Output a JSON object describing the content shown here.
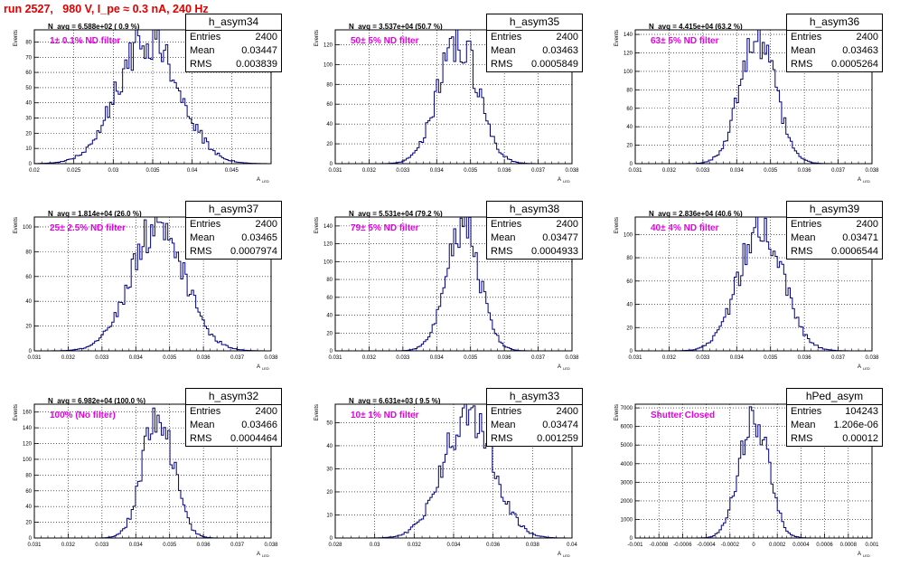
{
  "title": "run 2527,   980 V, I_pe ≈ 0.3 nA, 240 Hz",
  "axis_labels": {
    "y": "Events",
    "x": "A",
    "x_sub": "LED"
  },
  "stat_labels": {
    "entries": "Entries",
    "mean": "Mean",
    "rms": "RMS"
  },
  "colors": {
    "hist": "#00007f",
    "filter_text": "#e600e6",
    "title": "#e00000",
    "grid": "#000000"
  },
  "chart_data": [
    {
      "type": "histogram",
      "name": "h_asym34",
      "navg": "N_avg = 6.588e+02 ( 0.9 %)",
      "filter": "1± 0.1% ND filter",
      "entries": "2400",
      "mean": "0.03447",
      "rms": "0.003839",
      "mean_value": 0.03447,
      "rms_value": 0.003839,
      "peak": 84,
      "xlim": [
        0.02,
        0.05
      ],
      "ylim": [
        0,
        88
      ],
      "xticks": [
        "0.02",
        "0.025",
        "0.03",
        "0.035",
        "0.04",
        "0.045"
      ],
      "xtick_values": [
        0.02,
        0.025,
        0.03,
        0.035,
        0.04,
        0.045
      ],
      "yticks": [
        0,
        10,
        20,
        30,
        40,
        50,
        60,
        70,
        80
      ],
      "seed": 3
    },
    {
      "type": "histogram",
      "name": "h_asym35",
      "navg": "N_avg = 3.537e+04 (50.7 %)",
      "filter": "50± 5% ND filter",
      "entries": "2400",
      "mean": "0.03463",
      "rms": "0.0005849",
      "mean_value": 0.03463,
      "rms_value": 0.0005849,
      "peak": 126,
      "xlim": [
        0.031,
        0.038
      ],
      "ylim": [
        0,
        135
      ],
      "xticks": [
        "0.031",
        "0.032",
        "0.033",
        "0.034",
        "0.035",
        "0.036",
        "0.037",
        "0.038"
      ],
      "xtick_values": [
        0.031,
        0.032,
        0.033,
        0.034,
        0.035,
        0.036,
        0.037,
        0.038
      ],
      "yticks": [
        0,
        20,
        40,
        60,
        80,
        100,
        120
      ],
      "seed": 7
    },
    {
      "type": "histogram",
      "name": "h_asym36",
      "navg": "N_avg = 4.415e+04 (63.2 %)",
      "filter": "63± 5% ND filter",
      "entries": "2400",
      "mean": "0.03463",
      "rms": "0.0005264",
      "mean_value": 0.03463,
      "rms_value": 0.0005264,
      "peak": 136,
      "xlim": [
        0.031,
        0.038
      ],
      "ylim": [
        0,
        145
      ],
      "xticks": [
        "0.031",
        "0.032",
        "0.033",
        "0.034",
        "0.035",
        "0.036",
        "0.037",
        "0.038"
      ],
      "xtick_values": [
        0.031,
        0.032,
        0.033,
        0.034,
        0.035,
        0.036,
        0.037,
        0.038
      ],
      "yticks": [
        0,
        20,
        40,
        60,
        80,
        100,
        120,
        140
      ],
      "seed": 11
    },
    {
      "type": "histogram",
      "name": "h_asym37",
      "navg": "N_avg = 1.814e+04 (26.0 %)",
      "filter": "25± 2.5% ND filter",
      "entries": "2400",
      "mean": "0.03465",
      "rms": "0.0007974",
      "mean_value": 0.03465,
      "rms_value": 0.0007974,
      "peak": 100,
      "xlim": [
        0.031,
        0.038
      ],
      "ylim": [
        0,
        108
      ],
      "xticks": [
        "0.031",
        "0.032",
        "0.033",
        "0.034",
        "0.035",
        "0.036",
        "0.037",
        "0.038"
      ],
      "xtick_values": [
        0.031,
        0.032,
        0.033,
        0.034,
        0.035,
        0.036,
        0.037,
        0.038
      ],
      "yticks": [
        0,
        20,
        40,
        60,
        80,
        100
      ],
      "seed": 13
    },
    {
      "type": "histogram",
      "name": "h_asym38",
      "navg": "N_avg = 5.531e+04 (79.2 %)",
      "filter": "79± 5% ND filter",
      "entries": "2400",
      "mean": "0.03477",
      "rms": "0.0004933",
      "mean_value": 0.03477,
      "rms_value": 0.0004933,
      "peak": 140,
      "xlim": [
        0.031,
        0.038
      ],
      "ylim": [
        0,
        150
      ],
      "xticks": [
        "0.031",
        "0.032",
        "0.033",
        "0.034",
        "0.035",
        "0.036",
        "0.037",
        "0.038"
      ],
      "xtick_values": [
        0.031,
        0.032,
        0.033,
        0.034,
        0.035,
        0.036,
        0.037,
        0.038
      ],
      "yticks": [
        0,
        20,
        40,
        60,
        80,
        100,
        120,
        140
      ],
      "seed": 17
    },
    {
      "type": "histogram",
      "name": "h_asym39",
      "navg": "N_avg = 2.836e+04 (40.6 %)",
      "filter": "40± 4% ND filter",
      "entries": "2400",
      "mean": "0.03471",
      "rms": "0.0006544",
      "mean_value": 0.03471,
      "rms_value": 0.0006544,
      "peak": 105,
      "xlim": [
        0.031,
        0.038
      ],
      "ylim": [
        0,
        115
      ],
      "xticks": [
        "0.031",
        "0.032",
        "0.033",
        "0.034",
        "0.035",
        "0.036",
        "0.037",
        "0.038"
      ],
      "xtick_values": [
        0.031,
        0.032,
        0.033,
        0.034,
        0.035,
        0.036,
        0.037,
        0.038
      ],
      "yticks": [
        0,
        20,
        40,
        60,
        80,
        100
      ],
      "seed": 19
    },
    {
      "type": "histogram",
      "name": "h_asym32",
      "navg": "N_avg = 6.982e+04 (100.0 %)",
      "filter": "100% (No filter)",
      "entries": "2400",
      "mean": "0.03466",
      "rms": "0.0004464",
      "mean_value": 0.03466,
      "rms_value": 0.0004464,
      "peak": 160,
      "xlim": [
        0.031,
        0.038
      ],
      "ylim": [
        0,
        170
      ],
      "xticks": [
        "0.031",
        "0.032",
        "0.033",
        "0.034",
        "0.035",
        "0.036",
        "0.037",
        "0.038"
      ],
      "xtick_values": [
        0.031,
        0.032,
        0.033,
        0.034,
        0.035,
        0.036,
        0.037,
        0.038
      ],
      "yticks": [
        0,
        20,
        40,
        60,
        80,
        100,
        120,
        140,
        160
      ],
      "seed": 23
    },
    {
      "type": "histogram",
      "name": "h_asym33",
      "navg": "N_avg = 6.631e+03 ( 9.5 %)",
      "filter": "10± 1% ND filter",
      "entries": "2400",
      "mean": "0.03474",
      "rms": "0.001259",
      "mean_value": 0.03474,
      "rms_value": 0.001259,
      "peak": 54,
      "xlim": [
        0.028,
        0.04
      ],
      "ylim": [
        0,
        58
      ],
      "xticks": [
        "0.028",
        "0.03",
        "0.032",
        "0.034",
        "0.036",
        "0.038",
        "0.04"
      ],
      "xtick_values": [
        0.028,
        0.03,
        0.032,
        0.034,
        0.036,
        0.038,
        0.04
      ],
      "yticks": [
        0,
        10,
        20,
        30,
        40,
        50
      ],
      "seed": 29
    },
    {
      "type": "histogram",
      "name": "hPed_asym",
      "navg": "",
      "filter": "Shutter Closed",
      "entries": "104243",
      "mean": "1.206e-06",
      "rms": "0.00012",
      "mean_value": 1.2e-06,
      "rms_value": 0.00012,
      "peak": 6800,
      "xlim": [
        -0.001,
        0.001
      ],
      "ylim": [
        0,
        7200
      ],
      "xticks": [
        "-0.001",
        "-0.0008",
        "-0.0006",
        "-0.0004",
        "-0.0002",
        "0",
        "0.0002",
        "0.0004",
        "0.0006",
        "0.0008",
        "0.001"
      ],
      "xtick_values": [
        -0.001,
        -0.0008,
        -0.0006,
        -0.0004,
        -0.0002,
        0,
        0.0002,
        0.0004,
        0.0006,
        0.0008,
        0.001
      ],
      "yticks": [
        0,
        1000,
        2000,
        3000,
        4000,
        5000,
        6000,
        7000
      ],
      "seed": 31
    }
  ]
}
